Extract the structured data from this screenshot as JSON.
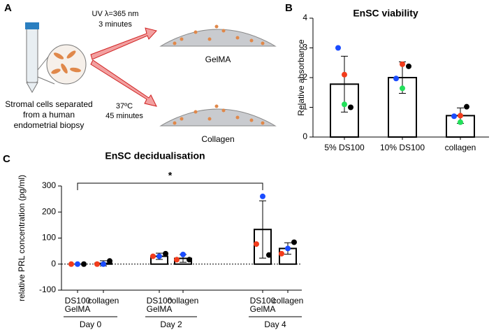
{
  "panels": [
    "A",
    "B",
    "C"
  ],
  "schematic": {
    "uv_condition": "UV λ=365 nm",
    "uv_time": "3 minutes",
    "gel_1": "GelMA",
    "temp_condition": "37ºC",
    "temp_time": "45 minutes",
    "gel_2": "Collagen",
    "source": [
      "Stromal cells separated",
      "from a human",
      "endometrial biopsy"
    ]
  },
  "chart_data": [
    {
      "type": "bar",
      "title": "EnSC viability",
      "y_label": "Relative absorbance",
      "categories": [
        "5% DS100",
        "10% DS100",
        "collagen"
      ],
      "values": [
        1.78,
        2.0,
        0.72
      ],
      "errors": [
        0.94,
        0.53,
        0.26
      ],
      "points": [
        {
          "color": "#1a4cff",
          "values": [
            3.0,
            1.97,
            0.7
          ]
        },
        {
          "color": "#f23c1c",
          "values": [
            2.1,
            2.45,
            0.72
          ]
        },
        {
          "color": "#000000",
          "values": [
            1.0,
            2.38,
            1.02
          ]
        },
        {
          "color": "#22e05a",
          "values": [
            1.1,
            1.64,
            0.5
          ]
        }
      ],
      "ylim": [
        0,
        4
      ],
      "yticks": [
        0,
        1,
        2,
        3,
        4
      ]
    },
    {
      "type": "bar",
      "title": "EnSC decidualisation",
      "y_label": "relative PRL concentration (pg/ml)",
      "categories": [
        "DS100 GelMA",
        "collagen",
        "DS100 GelMA",
        "collagen",
        "DS100 GelMA",
        "collagen"
      ],
      "groups": [
        "Day 0",
        "Day 2",
        "Day 4"
      ],
      "values": [
        0,
        3,
        30,
        22,
        133,
        60
      ],
      "errors": [
        0,
        10,
        12,
        15,
        110,
        22
      ],
      "points": [
        {
          "color": "#f23c1c",
          "values": [
            0,
            0,
            30,
            17,
            77,
            40
          ]
        },
        {
          "color": "#1a4cff",
          "values": [
            0,
            0,
            30,
            37,
            260,
            60
          ]
        },
        {
          "color": "#000000",
          "values": [
            0,
            12,
            40,
            17,
            35,
            84
          ]
        }
      ],
      "ylim": [
        -100,
        300
      ],
      "yticks": [
        -100,
        0,
        100,
        200,
        300
      ],
      "significance": "*"
    }
  ]
}
